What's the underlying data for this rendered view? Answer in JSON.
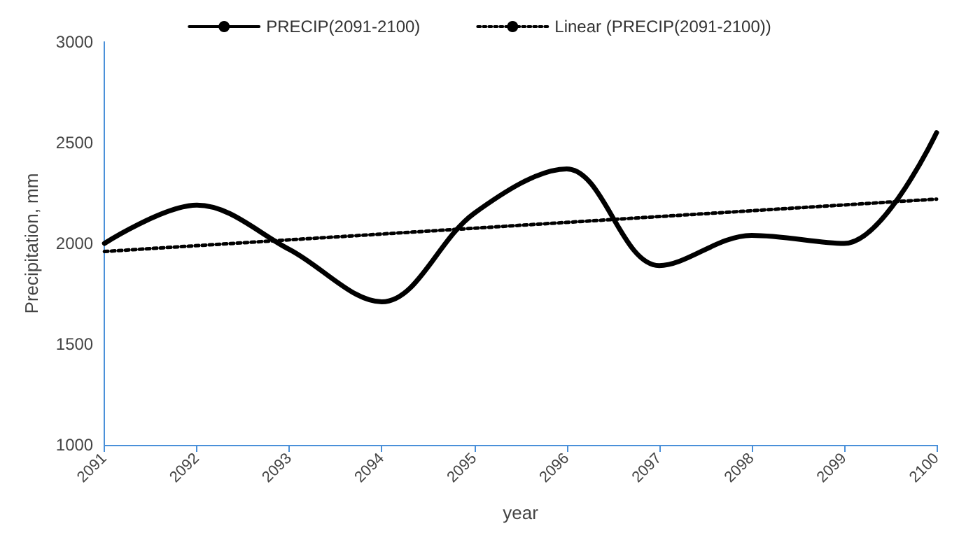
{
  "chart_data": {
    "type": "line",
    "xlabel": "year",
    "ylabel": "Precipitation, mm",
    "x": [
      2091,
      2092,
      2093,
      2094,
      2095,
      2096,
      2097,
      2098,
      2099,
      2100
    ],
    "series": [
      {
        "name": "PRECIP(2091-2100)",
        "color": "#000000",
        "values": [
          2000,
          2190,
          1970,
          1710,
          2150,
          2370,
          1890,
          2040,
          2000,
          2550
        ],
        "line_style": "solid"
      },
      {
        "name": "Linear (PRECIP(2091-2100))",
        "color": "#000000",
        "x": [
          2091,
          2100
        ],
        "values": [
          1960,
          2220
        ],
        "line_style": "dotted"
      }
    ],
    "xlim": [
      2091,
      2100
    ],
    "xticks": [
      2091,
      2092,
      2093,
      2094,
      2095,
      2096,
      2097,
      2098,
      2099,
      2100
    ],
    "ylim": [
      1000,
      3000
    ],
    "yticks": [
      1000,
      1500,
      2000,
      2500,
      3000
    ],
    "grid": false,
    "legend": "top",
    "marker": "none"
  }
}
